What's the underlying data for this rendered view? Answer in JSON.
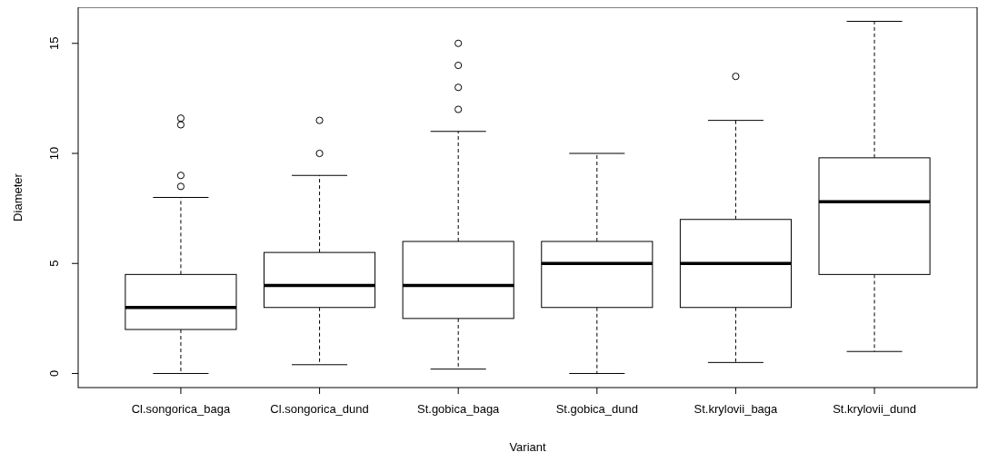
{
  "chart_data": {
    "type": "box",
    "xlabel": "Variant",
    "ylabel": "Diameter",
    "categories": [
      "Cl.songorica_baga",
      "Cl.songorica_dund",
      "St.gobica_baga",
      "St.gobica_dund",
      "St.krylovii_baga",
      "St.krylovii_dund"
    ],
    "boxes": [
      {
        "low": 0,
        "q1": 2,
        "median": 3,
        "q3": 4.5,
        "high": 8,
        "outliers": [
          8.5,
          9,
          11.3,
          11.6
        ]
      },
      {
        "low": 0.4,
        "q1": 3,
        "median": 4,
        "q3": 5.5,
        "high": 9,
        "outliers": [
          10,
          11.5
        ]
      },
      {
        "low": 0.2,
        "q1": 2.5,
        "median": 4,
        "q3": 6,
        "high": 11,
        "outliers": [
          12,
          13,
          14,
          15
        ]
      },
      {
        "low": 0,
        "q1": 3,
        "median": 5,
        "q3": 6,
        "high": 10
      },
      {
        "low": 0.5,
        "q1": 3,
        "median": 5,
        "q3": 7,
        "high": 11.5,
        "outliers": [
          13.5
        ]
      },
      {
        "low": 1,
        "q1": 4.5,
        "median": 7.8,
        "q3": 9.8,
        "high": 16
      }
    ],
    "ylim": [
      -0.64,
      16.64
    ],
    "yticks": [
      0,
      5,
      10,
      15
    ]
  }
}
